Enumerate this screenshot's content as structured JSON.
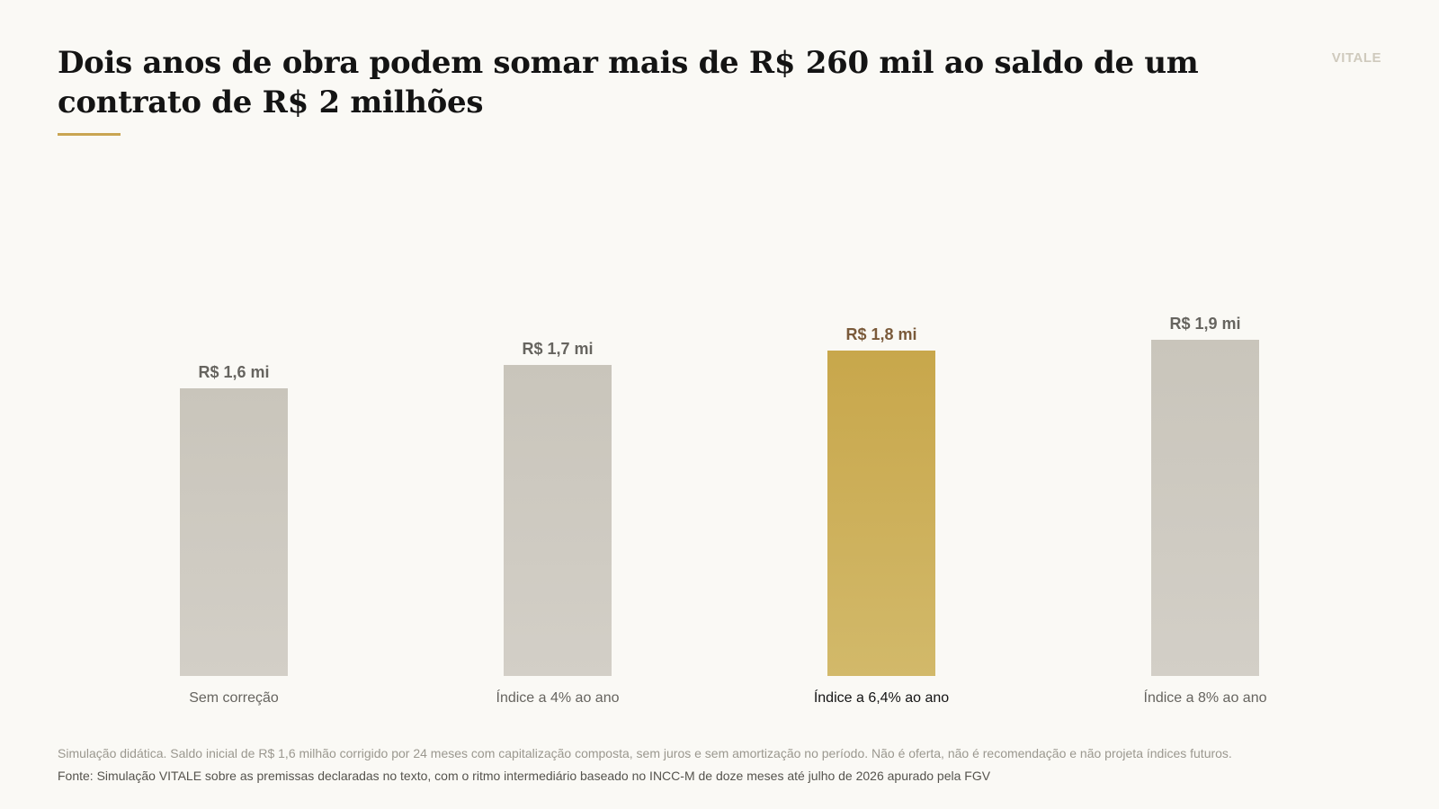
{
  "header": {
    "title": "Dois anos de obra podem somar mais de R$ 260 mil ao saldo de um contrato de R$ 2 milhões",
    "brand": "VITALE"
  },
  "colors": {
    "background": "#faf9f5",
    "bar_default": "#cec9bf",
    "bar_highlight": "#caa84c",
    "label_default": "#66645f",
    "label_highlight": "#7a5a3a",
    "accent_rule": "#c9a552"
  },
  "chart_data": {
    "type": "bar",
    "title": "Dois anos de obra podem somar mais de R$ 260 mil ao saldo de um contrato de R$ 2 milhões",
    "xlabel": "",
    "ylabel": "",
    "categories": [
      "Sem correção",
      "Índice a 4% ao ano",
      "Índice a 6,4% ao ano",
      "Índice a 8% ao ano"
    ],
    "values": [
      1.6,
      1.73,
      1.81,
      1.87
    ],
    "data_labels": [
      "R$ 1,6 mi",
      "R$ 1,7 mi",
      "R$ 1,8 mi",
      "R$ 1,9 mi"
    ],
    "highlight_index": 2,
    "ylim": [
      0,
      1.87
    ],
    "grid": false,
    "legend": "none"
  },
  "footer": {
    "note": "Simulação didática. Saldo inicial de R$ 1,6 milhão corrigido por 24 meses com capitalização composta, sem juros e sem amortização no período. Não é oferta, não é recomendação e não projeta índices futuros.",
    "source": "Fonte: Simulação VITALE sobre as premissas declaradas no texto, com o ritmo intermediário baseado no INCC-M de doze meses até julho de 2026 apurado pela FGV"
  }
}
